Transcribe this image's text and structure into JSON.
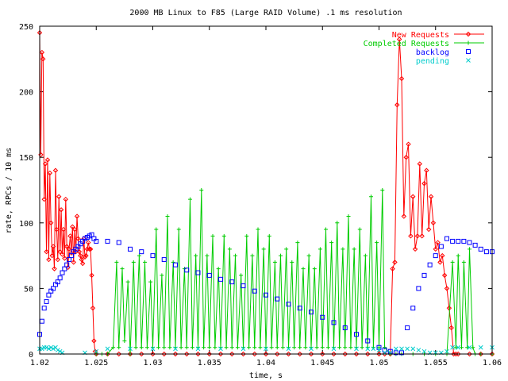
{
  "chart_data": {
    "type": "line",
    "title": "2000 MB Linux to F85 (Large RAID Volume) .1 ms resolution",
    "xlabel": "time, s",
    "ylabel": "rate, RPCs / 10 ms",
    "xlim": [
      1.02,
      1.06
    ],
    "ylim": [
      0,
      250
    ],
    "x_ticks": [
      1.02,
      1.025,
      1.03,
      1.035,
      1.04,
      1.045,
      1.05,
      1.055,
      1.06
    ],
    "x_tick_labels": [
      "1.02",
      "1.025",
      "1.03",
      "1.035",
      "1.04",
      "1.045",
      "1.05",
      "1.055",
      "1.06"
    ],
    "y_ticks": [
      0,
      50,
      100,
      150,
      200,
      250
    ],
    "y_tick_labels": [
      "0",
      "50",
      "100",
      "150",
      "200",
      "250"
    ],
    "grid": false,
    "legend_position": "top-right",
    "series": [
      {
        "name": "New Requests",
        "color": "#ff0000",
        "marker": "diamond",
        "x": [
          1.02,
          1.0201,
          1.0202,
          1.0203,
          1.0204,
          1.0205,
          1.0206,
          1.0207,
          1.0208,
          1.0209,
          1.021,
          1.0211,
          1.0212,
          1.0213,
          1.0214,
          1.0215,
          1.0216,
          1.0217,
          1.0218,
          1.0219,
          1.022,
          1.0221,
          1.0222,
          1.0223,
          1.0224,
          1.0225,
          1.0226,
          1.0227,
          1.0228,
          1.0229,
          1.023,
          1.0231,
          1.0232,
          1.0233,
          1.0234,
          1.0235,
          1.0236,
          1.0237,
          1.0238,
          1.0239,
          1.024,
          1.0241,
          1.0242,
          1.0243,
          1.0244,
          1.0245,
          1.0246,
          1.0247,
          1.0248,
          1.0249,
          1.025,
          1.026,
          1.027,
          1.028,
          1.029,
          1.03,
          1.031,
          1.032,
          1.033,
          1.034,
          1.035,
          1.036,
          1.037,
          1.038,
          1.039,
          1.04,
          1.041,
          1.042,
          1.043,
          1.044,
          1.045,
          1.046,
          1.047,
          1.048,
          1.049,
          1.05,
          1.0505,
          1.051,
          1.0512,
          1.0514,
          1.0516,
          1.0518,
          1.052,
          1.0522,
          1.0524,
          1.0526,
          1.0528,
          1.053,
          1.0532,
          1.0534,
          1.0536,
          1.0538,
          1.054,
          1.0542,
          1.0544,
          1.0546,
          1.0548,
          1.055,
          1.0552,
          1.0554,
          1.0556,
          1.0558,
          1.056,
          1.0562,
          1.0564,
          1.0566,
          1.0568,
          1.057,
          1.058,
          1.059,
          1.06
        ],
        "y": [
          245,
          152,
          230,
          225,
          118,
          145,
          78,
          148,
          72,
          138,
          100,
          75,
          82,
          65,
          140,
          95,
          72,
          120,
          78,
          110,
          76,
          95,
          73,
          118,
          82,
          66,
          80,
          90,
          77,
          97,
          70,
          95,
          78,
          105,
          88,
          78,
          75,
          72,
          69,
          88,
          74,
          75,
          80,
          85,
          80,
          80,
          60,
          35,
          10,
          2,
          0,
          0,
          0,
          0,
          0,
          0,
          0,
          0,
          0,
          0,
          0,
          0,
          0,
          0,
          0,
          0,
          0,
          0,
          0,
          0,
          0,
          0,
          0,
          0,
          0,
          0,
          0,
          0,
          65,
          70,
          190,
          240,
          210,
          105,
          150,
          160,
          90,
          120,
          80,
          90,
          145,
          90,
          130,
          140,
          95,
          120,
          100,
          80,
          85,
          70,
          75,
          60,
          50,
          35,
          20,
          0,
          0,
          0,
          0,
          0,
          0
        ]
      },
      {
        "name": "Completed Requests",
        "color": "#00cc00",
        "marker": "plus",
        "x": [
          1.025,
          1.0255,
          1.026,
          1.0265,
          1.0268,
          1.027,
          1.0273,
          1.0275,
          1.0278,
          1.028,
          1.0283,
          1.0285,
          1.0288,
          1.029,
          1.0293,
          1.0295,
          1.0298,
          1.03,
          1.0303,
          1.0305,
          1.0308,
          1.031,
          1.0313,
          1.0315,
          1.0318,
          1.032,
          1.0323,
          1.0325,
          1.0328,
          1.033,
          1.0333,
          1.0335,
          1.0338,
          1.034,
          1.0343,
          1.0345,
          1.0348,
          1.035,
          1.0353,
          1.0355,
          1.0358,
          1.036,
          1.0363,
          1.0365,
          1.0368,
          1.037,
          1.0373,
          1.0375,
          1.0378,
          1.038,
          1.0383,
          1.0385,
          1.0388,
          1.039,
          1.0393,
          1.0395,
          1.0398,
          1.04,
          1.0403,
          1.0405,
          1.0408,
          1.041,
          1.0413,
          1.0415,
          1.0418,
          1.042,
          1.0423,
          1.0425,
          1.0428,
          1.043,
          1.0433,
          1.0435,
          1.0438,
          1.044,
          1.0443,
          1.0445,
          1.0448,
          1.045,
          1.0453,
          1.0455,
          1.0458,
          1.046,
          1.0463,
          1.0465,
          1.0468,
          1.047,
          1.0473,
          1.0475,
          1.0478,
          1.048,
          1.0483,
          1.0485,
          1.0488,
          1.049,
          1.0493,
          1.0495,
          1.0498,
          1.05,
          1.0503,
          1.0505,
          1.051,
          1.0515,
          1.052,
          1.053,
          1.054,
          1.055,
          1.056,
          1.0565,
          1.0568,
          1.057,
          1.0573,
          1.0575,
          1.0578,
          1.058,
          1.0583,
          1.0585,
          1.059,
          1.06
        ],
        "y": [
          0,
          0,
          0,
          5,
          70,
          5,
          65,
          10,
          55,
          0,
          70,
          5,
          75,
          5,
          70,
          5,
          55,
          5,
          95,
          5,
          60,
          5,
          105,
          5,
          70,
          5,
          95,
          5,
          65,
          5,
          118,
          5,
          75,
          5,
          125,
          5,
          75,
          5,
          90,
          5,
          65,
          5,
          90,
          5,
          80,
          5,
          75,
          5,
          60,
          5,
          90,
          5,
          75,
          5,
          95,
          5,
          80,
          5,
          90,
          5,
          70,
          5,
          75,
          5,
          80,
          5,
          70,
          5,
          85,
          5,
          65,
          5,
          75,
          5,
          65,
          5,
          80,
          5,
          95,
          5,
          85,
          5,
          100,
          5,
          80,
          5,
          105,
          5,
          80,
          5,
          95,
          5,
          75,
          5,
          120,
          5,
          85,
          5,
          125,
          5,
          0,
          0,
          0,
          0,
          0,
          0,
          0,
          70,
          5,
          75,
          5,
          70,
          5,
          80,
          5,
          0,
          0,
          0
        ]
      },
      {
        "name": "backlog",
        "color": "#0000ff",
        "marker": "square",
        "x": [
          1.02,
          1.0202,
          1.0204,
          1.0206,
          1.0208,
          1.021,
          1.0212,
          1.0214,
          1.0216,
          1.0218,
          1.022,
          1.0222,
          1.0224,
          1.0226,
          1.0228,
          1.023,
          1.0232,
          1.0234,
          1.0236,
          1.0238,
          1.024,
          1.0242,
          1.0244,
          1.0246,
          1.0248,
          1.025,
          1.026,
          1.027,
          1.028,
          1.029,
          1.03,
          1.031,
          1.032,
          1.033,
          1.034,
          1.035,
          1.036,
          1.037,
          1.038,
          1.039,
          1.04,
          1.041,
          1.042,
          1.043,
          1.044,
          1.045,
          1.046,
          1.047,
          1.048,
          1.049,
          1.05,
          1.0505,
          1.051,
          1.0515,
          1.052,
          1.0525,
          1.053,
          1.0535,
          1.054,
          1.0545,
          1.055,
          1.0555,
          1.056,
          1.0565,
          1.057,
          1.0575,
          1.058,
          1.0585,
          1.059,
          1.0595,
          1.06
        ],
        "y": [
          15,
          25,
          35,
          40,
          45,
          48,
          50,
          53,
          55,
          58,
          62,
          65,
          68,
          72,
          75,
          78,
          80,
          82,
          84,
          86,
          88,
          89,
          90,
          91,
          88,
          86,
          86,
          85,
          80,
          78,
          75,
          72,
          68,
          64,
          62,
          60,
          57,
          55,
          52,
          48,
          45,
          42,
          38,
          35,
          32,
          28,
          24,
          20,
          15,
          10,
          5,
          3,
          2,
          1,
          1,
          20,
          35,
          50,
          60,
          68,
          75,
          82,
          88,
          86,
          86,
          86,
          85,
          83,
          80,
          78,
          78
        ]
      },
      {
        "name": "pending",
        "color": "#00cccc",
        "marker": "cross",
        "x": [
          1.02,
          1.0202,
          1.0204,
          1.0206,
          1.0208,
          1.021,
          1.0212,
          1.0214,
          1.0216,
          1.0218,
          1.022,
          1.024,
          1.025,
          1.026,
          1.028,
          1.03,
          1.032,
          1.034,
          1.036,
          1.038,
          1.04,
          1.042,
          1.044,
          1.046,
          1.048,
          1.049,
          1.0495,
          1.05,
          1.0505,
          1.051,
          1.0515,
          1.052,
          1.0525,
          1.053,
          1.0535,
          1.054,
          1.0545,
          1.055,
          1.0555,
          1.056,
          1.0565,
          1.057,
          1.058,
          1.059,
          1.06
        ],
        "y": [
          4,
          4,
          5,
          5,
          4,
          5,
          4,
          5,
          3,
          2,
          1,
          1,
          2,
          4,
          4,
          4,
          4,
          4,
          4,
          4,
          4,
          4,
          4,
          4,
          4,
          4,
          4,
          3,
          1,
          1,
          4,
          4,
          4,
          4,
          3,
          2,
          1,
          1,
          1,
          2,
          5,
          5,
          5,
          5,
          5
        ]
      }
    ]
  }
}
